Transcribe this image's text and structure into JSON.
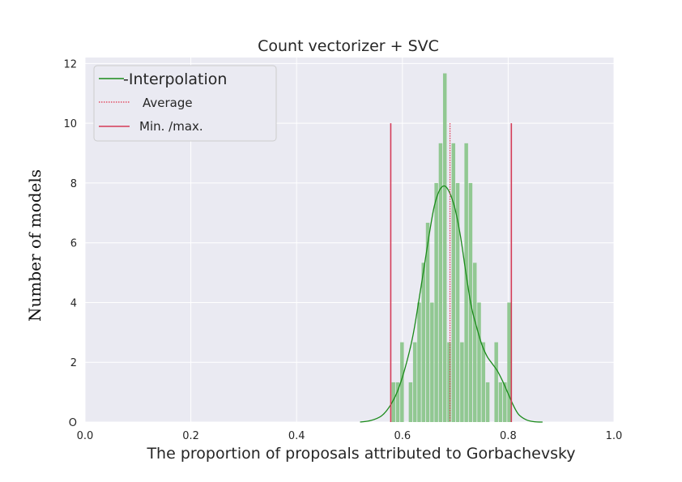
{
  "chart_data": {
    "type": "bar",
    "title": "Count vectorizer + SVC",
    "xlabel": "The proportion of proposals attributed to Gorbachevsky",
    "ylabel": "Number of models",
    "xlim": [
      0.0,
      1.0
    ],
    "ylim": [
      0,
      12.2
    ],
    "x_ticks": [
      "0.0",
      "0.2",
      "0.4",
      "0.6",
      "0.8",
      "1.0"
    ],
    "y_ticks": [
      "O",
      "2",
      "4",
      "6",
      "8",
      "10",
      "12"
    ],
    "grid": true,
    "legend_position": "top-left",
    "legend": {
      "interpolation": "-Interpolation",
      "average": "Average",
      "minmax": "Min. /max."
    },
    "histogram": {
      "bin_width": 0.0081,
      "bins": [
        {
          "x": 0.579,
          "count": 1.33
        },
        {
          "x": 0.5871,
          "count": 1.33
        },
        {
          "x": 0.5952,
          "count": 2.67
        },
        {
          "x": 0.6033,
          "count": 0
        },
        {
          "x": 0.6114,
          "count": 1.33
        },
        {
          "x": 0.6195,
          "count": 2.67
        },
        {
          "x": 0.6276,
          "count": 4.0
        },
        {
          "x": 0.6357,
          "count": 5.33
        },
        {
          "x": 0.6438,
          "count": 6.67
        },
        {
          "x": 0.6519,
          "count": 4.0
        },
        {
          "x": 0.66,
          "count": 8.0
        },
        {
          "x": 0.6681,
          "count": 9.33
        },
        {
          "x": 0.6762,
          "count": 11.67
        },
        {
          "x": 0.6843,
          "count": 2.67
        },
        {
          "x": 0.6924,
          "count": 9.33
        },
        {
          "x": 0.7005,
          "count": 8.0
        },
        {
          "x": 0.7086,
          "count": 2.67
        },
        {
          "x": 0.7167,
          "count": 9.33
        },
        {
          "x": 0.7248,
          "count": 8.0
        },
        {
          "x": 0.7329,
          "count": 5.33
        },
        {
          "x": 0.741,
          "count": 4.0
        },
        {
          "x": 0.7491,
          "count": 2.67
        },
        {
          "x": 0.7572,
          "count": 1.33
        },
        {
          "x": 0.7653,
          "count": 0
        },
        {
          "x": 0.7734,
          "count": 2.67
        },
        {
          "x": 0.7815,
          "count": 1.33
        },
        {
          "x": 0.7896,
          "count": 1.33
        },
        {
          "x": 0.7977,
          "count": 4.0
        }
      ]
    },
    "kde": {
      "x": [
        0.52,
        0.54,
        0.56,
        0.575,
        0.59,
        0.605,
        0.62,
        0.635,
        0.65,
        0.66,
        0.67,
        0.68,
        0.69,
        0.7,
        0.71,
        0.72,
        0.73,
        0.74,
        0.75,
        0.76,
        0.77,
        0.78,
        0.79,
        0.8,
        0.81,
        0.82,
        0.835,
        0.85,
        0.865
      ],
      "y": [
        0.0,
        0.05,
        0.2,
        0.5,
        1.0,
        1.8,
        2.9,
        4.5,
        6.2,
        7.2,
        7.75,
        7.9,
        7.65,
        7.1,
        6.2,
        5.0,
        3.9,
        3.2,
        2.6,
        2.2,
        1.95,
        1.7,
        1.35,
        0.95,
        0.55,
        0.25,
        0.07,
        0.01,
        0.0
      ]
    },
    "average": 0.69,
    "min": 0.578,
    "max": 0.806,
    "marker_line_height": 10,
    "colors": {
      "bars": "#8cc68c",
      "kde": "#1a8a1a",
      "average": "#e0304a",
      "minmax": "#d43b58",
      "background": "#eaeaf2",
      "grid": "#ffffff"
    }
  }
}
